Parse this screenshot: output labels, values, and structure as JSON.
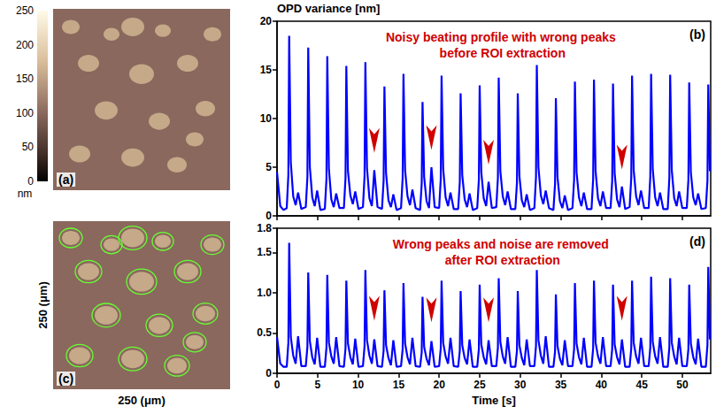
{
  "chart_data": [
    {
      "type": "image",
      "label": "(a)",
      "colorbar": {
        "range": [
          0,
          250
        ],
        "ticks": [
          0,
          50,
          100,
          150,
          200,
          250
        ],
        "unit": "nm"
      }
    },
    {
      "type": "line",
      "label": "(b)",
      "ylabel": "OPD variance [nm]",
      "annotation": "Noisy beating profile with wrong peaks before ROI extraction",
      "color": "#0000ff",
      "x": [
        0,
        0.4,
        0.8,
        1.2,
        1.4,
        1.5,
        1.7,
        2.0,
        2.3,
        2.6,
        3.0,
        3.55,
        3.75,
        3.85,
        4.05,
        4.35,
        4.65,
        4.95,
        5.35,
        5.9,
        6.1,
        6.2,
        6.4,
        6.7,
        7.0,
        7.3,
        7.7,
        8.25,
        8.45,
        8.55,
        8.75,
        9.05,
        9.35,
        9.65,
        10.05,
        10.6,
        10.8,
        10.9,
        11.1,
        11.4,
        11.7,
        12.0,
        12.4,
        12.95,
        13.15,
        13.25,
        13.45,
        13.75,
        14.05,
        14.35,
        14.75,
        15.3,
        15.5,
        15.6,
        15.8,
        16.1,
        16.4,
        16.7,
        17.1,
        17.65,
        17.85,
        17.95,
        18.15,
        18.45,
        18.75,
        19.05,
        19.45,
        20.0,
        20.2,
        20.3,
        20.5,
        20.8,
        21.1,
        21.4,
        21.8,
        22.35,
        22.55,
        22.65,
        22.85,
        23.15,
        23.45,
        23.75,
        24.15,
        24.7,
        24.9,
        25.0,
        25.2,
        25.5,
        25.8,
        26.1,
        26.5,
        27.05,
        27.25,
        27.35,
        27.55,
        27.85,
        28.15,
        28.45,
        28.85,
        29.4,
        29.6,
        29.7,
        29.9,
        30.2,
        30.5,
        30.8,
        31.2,
        31.75,
        31.95,
        32.05,
        32.25,
        32.55,
        32.85,
        33.15,
        33.55,
        34.1,
        34.3,
        34.4,
        34.6,
        34.9,
        35.2,
        35.5,
        35.9,
        36.45,
        36.65,
        36.75,
        36.95,
        37.25,
        37.55,
        37.85,
        38.25,
        38.8,
        39.0,
        39.1,
        39.3,
        39.6,
        39.9,
        40.2,
        40.6,
        41.15,
        41.35,
        41.45,
        41.65,
        41.95,
        42.25,
        42.55,
        42.95,
        43.5,
        43.7,
        43.8,
        44.0,
        44.3,
        44.6,
        44.9,
        45.3,
        45.85,
        46.05,
        46.15,
        46.35,
        46.65,
        46.95,
        47.25,
        47.65,
        48.2,
        48.4,
        48.5,
        48.7,
        49.0,
        49.3,
        49.6,
        50.0,
        50.55,
        50.75,
        50.85,
        51.05,
        51.35,
        51.65,
        51.95,
        52.35,
        52.9,
        53.1,
        53.2,
        53.4
      ],
      "values": [
        4.5,
        1.0,
        0.6,
        0.8,
        4.2,
        18.5,
        5.5,
        2.0,
        1.1,
        2.4,
        0.7,
        0.9,
        4.0,
        17.3,
        5.0,
        1.9,
        1.0,
        2.6,
        0.6,
        0.7,
        3.8,
        16.4,
        4.8,
        1.7,
        0.9,
        2.3,
        0.8,
        0.8,
        3.9,
        15.4,
        4.6,
        2.1,
        1.2,
        2.5,
        0.7,
        0.9,
        4.1,
        15.8,
        4.9,
        1.8,
        1.0,
        4.7,
        0.9,
        0.7,
        3.6,
        13.3,
        4.4,
        1.6,
        0.9,
        2.2,
        0.6,
        0.8,
        3.9,
        14.6,
        4.7,
        2.0,
        1.1,
        2.7,
        0.8,
        0.6,
        3.3,
        11.7,
        4.0,
        1.5,
        0.8,
        5.0,
        0.9,
        0.8,
        3.8,
        14.4,
        4.8,
        1.9,
        1.0,
        2.4,
        0.7,
        0.7,
        3.5,
        12.6,
        4.2,
        1.7,
        0.9,
        2.3,
        0.6,
        0.8,
        3.7,
        13.4,
        4.5,
        1.8,
        1.0,
        3.5,
        0.8,
        0.9,
        3.9,
        14.2,
        4.6,
        2.0,
        1.1,
        2.5,
        0.7,
        0.7,
        3.4,
        12.6,
        4.1,
        1.6,
        0.9,
        2.2,
        0.6,
        0.8,
        4.0,
        15.5,
        5.0,
        2.1,
        1.2,
        2.6,
        0.8,
        0.6,
        3.3,
        12.1,
        4.0,
        1.5,
        0.8,
        2.1,
        0.6,
        0.8,
        3.7,
        13.8,
        4.5,
        1.9,
        1.0,
        2.4,
        0.7,
        0.7,
        3.8,
        14.0,
        4.6,
        1.8,
        1.0,
        2.5,
        0.8,
        0.8,
        3.6,
        13.6,
        4.4,
        1.7,
        0.9,
        3.0,
        0.7,
        0.9,
        3.9,
        14.4,
        4.7,
        2.0,
        1.1,
        2.6,
        0.8,
        0.8,
        4.0,
        14.6,
        4.8,
        1.9,
        1.0,
        2.4,
        0.7,
        0.7,
        3.9,
        14.5,
        4.7,
        1.8,
        1.0,
        2.5,
        0.8,
        0.8,
        3.7,
        13.7,
        4.5,
        1.9,
        1.1,
        2.3,
        0.7,
        0.8,
        3.6,
        13.5,
        4.6
      ],
      "arrows": [
        {
          "x": 12.0,
          "y": 5.2
        },
        {
          "x": 19.05,
          "y": 5.5
        },
        {
          "x": 26.1,
          "y": 4.0
        },
        {
          "x": 42.55,
          "y": 3.5
        }
      ],
      "xlim": [
        0,
        53.5
      ],
      "ylim": [
        0,
        20
      ],
      "xticks": [
        0,
        5,
        10,
        15,
        20,
        25,
        30,
        35,
        40,
        45,
        50
      ],
      "yticks": [
        0,
        5,
        10,
        15,
        20
      ],
      "grid": false,
      "tick_labels": "y"
    },
    {
      "type": "image",
      "label": "(c)",
      "xlabel": "250 (μm)",
      "ylabel": "250 (μm)"
    },
    {
      "type": "line",
      "label": "(d)",
      "xlabel": "Time [s]",
      "annotation": "Wrong peaks and noise are removed after ROI extraction",
      "color": "#0000ff",
      "x": [
        0,
        0.4,
        0.8,
        1.2,
        1.4,
        1.5,
        1.7,
        2.0,
        2.3,
        2.6,
        3.0,
        3.55,
        3.75,
        3.85,
        4.05,
        4.35,
        4.65,
        4.95,
        5.35,
        5.9,
        6.1,
        6.2,
        6.4,
        6.7,
        7.0,
        7.3,
        7.7,
        8.25,
        8.45,
        8.55,
        8.75,
        9.05,
        9.35,
        9.65,
        10.05,
        10.6,
        10.8,
        10.9,
        11.1,
        11.4,
        11.7,
        12.0,
        12.4,
        12.95,
        13.15,
        13.25,
        13.45,
        13.75,
        14.05,
        14.35,
        14.75,
        15.3,
        15.5,
        15.6,
        15.8,
        16.1,
        16.4,
        16.7,
        17.1,
        17.65,
        17.85,
        17.95,
        18.15,
        18.45,
        18.75,
        19.05,
        19.45,
        20.0,
        20.2,
        20.3,
        20.5,
        20.8,
        21.1,
        21.4,
        21.8,
        22.35,
        22.55,
        22.65,
        22.85,
        23.15,
        23.45,
        23.75,
        24.15,
        24.7,
        24.9,
        25.0,
        25.2,
        25.5,
        25.8,
        26.1,
        26.5,
        27.05,
        27.25,
        27.35,
        27.55,
        27.85,
        28.15,
        28.45,
        28.85,
        29.4,
        29.6,
        29.7,
        29.9,
        30.2,
        30.5,
        30.8,
        31.2,
        31.75,
        31.95,
        32.05,
        32.25,
        32.55,
        32.85,
        33.15,
        33.55,
        34.1,
        34.3,
        34.4,
        34.6,
        34.9,
        35.2,
        35.5,
        35.9,
        36.45,
        36.65,
        36.75,
        36.95,
        37.25,
        37.55,
        37.85,
        38.25,
        38.8,
        39.0,
        39.1,
        39.3,
        39.6,
        39.9,
        40.2,
        40.6,
        41.15,
        41.35,
        41.45,
        41.65,
        41.95,
        42.25,
        42.55,
        42.95,
        43.5,
        43.7,
        43.8,
        44.0,
        44.3,
        44.6,
        44.9,
        45.3,
        45.85,
        46.05,
        46.15,
        46.35,
        46.65,
        46.95,
        47.25,
        47.65,
        48.2,
        48.4,
        48.5,
        48.7,
        49.0,
        49.3,
        49.6,
        50.0,
        50.55,
        50.75,
        50.85,
        51.05,
        51.35,
        51.65,
        51.95,
        52.35,
        52.9,
        53.1,
        53.2,
        53.4
      ],
      "values": [
        0.45,
        0.12,
        0.08,
        0.08,
        0.38,
        1.62,
        0.45,
        0.22,
        0.12,
        0.46,
        0.09,
        0.09,
        0.33,
        1.25,
        0.4,
        0.2,
        0.11,
        0.44,
        0.08,
        0.08,
        0.32,
        1.22,
        0.38,
        0.21,
        0.12,
        0.45,
        0.09,
        0.08,
        0.31,
        1.15,
        0.37,
        0.2,
        0.11,
        0.43,
        0.08,
        0.09,
        0.34,
        1.28,
        0.41,
        0.22,
        0.12,
        0.42,
        0.09,
        0.08,
        0.28,
        1.03,
        0.35,
        0.19,
        0.1,
        0.41,
        0.08,
        0.09,
        0.3,
        1.12,
        0.37,
        0.2,
        0.11,
        0.44,
        0.09,
        0.08,
        0.26,
        0.95,
        0.33,
        0.18,
        0.1,
        0.4,
        0.08,
        0.09,
        0.31,
        1.15,
        0.38,
        0.21,
        0.12,
        0.44,
        0.09,
        0.08,
        0.28,
        1.02,
        0.35,
        0.19,
        0.11,
        0.42,
        0.08,
        0.08,
        0.3,
        1.1,
        0.36,
        0.2,
        0.11,
        0.41,
        0.09,
        0.09,
        0.32,
        1.18,
        0.39,
        0.21,
        0.12,
        0.45,
        0.08,
        0.08,
        0.28,
        1.02,
        0.35,
        0.19,
        0.1,
        0.42,
        0.09,
        0.09,
        0.34,
        1.28,
        0.41,
        0.22,
        0.12,
        0.46,
        0.08,
        0.08,
        0.27,
        0.98,
        0.34,
        0.18,
        0.1,
        0.41,
        0.09,
        0.09,
        0.3,
        1.12,
        0.37,
        0.2,
        0.11,
        0.44,
        0.08,
        0.08,
        0.31,
        1.15,
        0.38,
        0.21,
        0.12,
        0.45,
        0.09,
        0.09,
        0.3,
        1.1,
        0.36,
        0.2,
        0.11,
        0.42,
        0.08,
        0.08,
        0.31,
        1.15,
        0.38,
        0.21,
        0.12,
        0.44,
        0.09,
        0.09,
        0.32,
        1.2,
        0.39,
        0.21,
        0.12,
        0.45,
        0.08,
        0.08,
        0.32,
        1.18,
        0.38,
        0.21,
        0.11,
        0.44,
        0.09,
        0.09,
        0.3,
        1.1,
        0.37,
        0.2,
        0.11,
        0.43,
        0.08,
        0.08,
        0.35,
        1.32,
        0.42
      ],
      "arrows": [
        {
          "x": 12.0,
          "y": 0.5
        },
        {
          "x": 19.05,
          "y": 0.48
        },
        {
          "x": 26.1,
          "y": 0.48
        },
        {
          "x": 42.55,
          "y": 0.5
        }
      ],
      "xlim": [
        0,
        53.5
      ],
      "ylim": [
        0,
        1.8
      ],
      "xticks": [
        0,
        5,
        10,
        15,
        20,
        25,
        30,
        35,
        40,
        45,
        50
      ],
      "yticks": [
        0,
        0.5,
        {
          "value": 1,
          "label": "1.0"
        },
        1.5,
        1.8
      ],
      "grid": false
    }
  ]
}
